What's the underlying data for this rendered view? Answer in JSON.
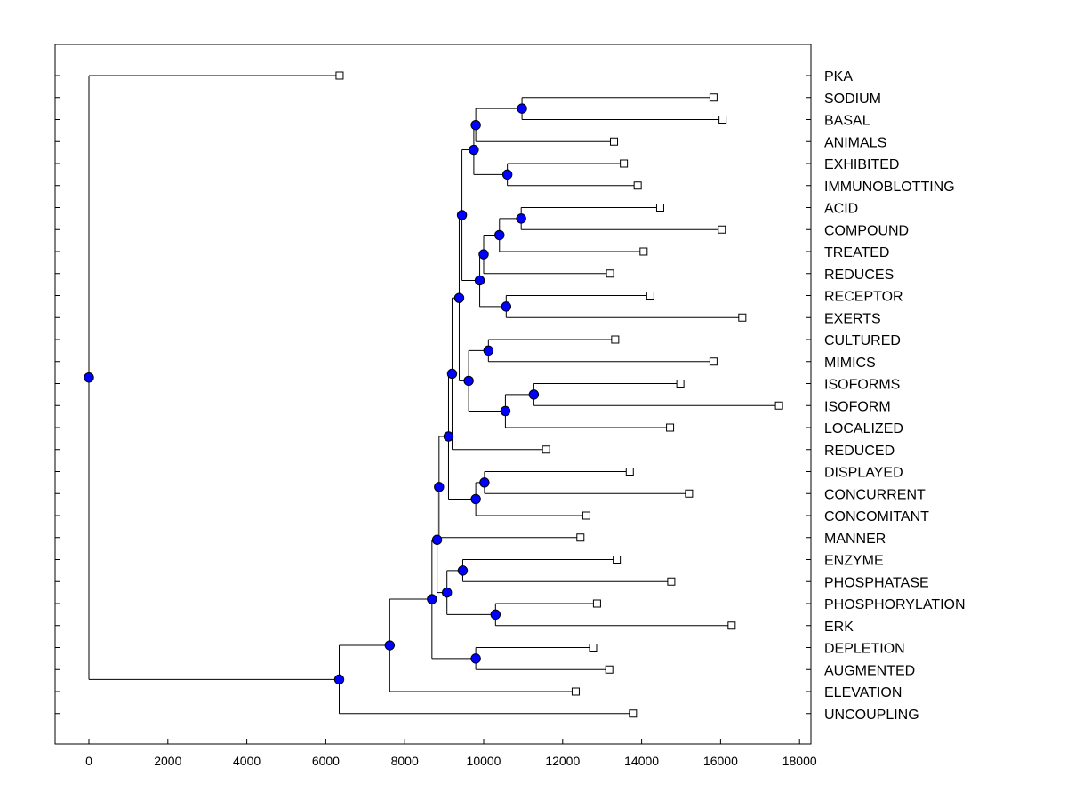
{
  "chart_data": {
    "type": "dendrogram",
    "title": "",
    "xlabel": "",
    "ylabel": "",
    "xlim": [
      -850,
      18400
    ],
    "x_ticks": [
      0,
      2000,
      4000,
      6000,
      8000,
      10000,
      12000,
      14000,
      16000,
      18000
    ],
    "x_tick_labels": [
      "0",
      "2000",
      "4000",
      "6000",
      "8000",
      "10000",
      "12000",
      "14000",
      "16000",
      "18000"
    ],
    "grid": false,
    "colors": {
      "node": "#0000ff",
      "line": "#000000",
      "leaf": "#ffffff"
    },
    "leaves": [
      {
        "label": "PKA",
        "x": 6350
      },
      {
        "label": "SODIUM",
        "x": 15820
      },
      {
        "label": "BASAL",
        "x": 16050
      },
      {
        "label": "ANIMALS",
        "x": 13300
      },
      {
        "label": "EXHIBITED",
        "x": 13550
      },
      {
        "label": "IMMUNOBLOTTING",
        "x": 13900
      },
      {
        "label": "ACID",
        "x": 14470
      },
      {
        "label": "COMPOUND",
        "x": 16030
      },
      {
        "label": "TREATED",
        "x": 14050
      },
      {
        "label": "REDUCES",
        "x": 13200
      },
      {
        "label": "RECEPTOR",
        "x": 14220
      },
      {
        "label": "EXERTS",
        "x": 16550
      },
      {
        "label": "CULTURED",
        "x": 13330
      },
      {
        "label": "MIMICS",
        "x": 15820
      },
      {
        "label": "ISOFORMS",
        "x": 14980
      },
      {
        "label": "ISOFORM",
        "x": 17480
      },
      {
        "label": "LOCALIZED",
        "x": 14720
      },
      {
        "label": "REDUCED",
        "x": 11580
      },
      {
        "label": "DISPLAYED",
        "x": 13700
      },
      {
        "label": "CONCURRENT",
        "x": 15200
      },
      {
        "label": "CONCOMITANT",
        "x": 12600
      },
      {
        "label": "MANNER",
        "x": 12450
      },
      {
        "label": "ENZYME",
        "x": 13370
      },
      {
        "label": "PHOSPHATASE",
        "x": 14750
      },
      {
        "label": "PHOSPHORYLATION",
        "x": 12870
      },
      {
        "label": "ERK",
        "x": 16280
      },
      {
        "label": "DEPLETION",
        "x": 12770
      },
      {
        "label": "AUGMENTED",
        "x": 13180
      },
      {
        "label": "ELEVATION",
        "x": 12330
      },
      {
        "label": "UNCOUPLING",
        "x": 13780
      }
    ],
    "merges": [
      {
        "id": "n1",
        "x": 10970,
        "children": [
          "SODIUM",
          "BASAL"
        ]
      },
      {
        "id": "n2",
        "x": 9800,
        "children": [
          "n1",
          "ANIMALS"
        ]
      },
      {
        "id": "n3",
        "x": 10600,
        "children": [
          "EXHIBITED",
          "IMMUNOBLOTTING"
        ]
      },
      {
        "id": "n4",
        "x": 9750,
        "children": [
          "n2",
          "n3"
        ]
      },
      {
        "id": "n5",
        "x": 10950,
        "children": [
          "ACID",
          "COMPOUND"
        ]
      },
      {
        "id": "n6",
        "x": 10400,
        "children": [
          "n5",
          "TREATED"
        ]
      },
      {
        "id": "n7",
        "x": 10000,
        "children": [
          "n6",
          "REDUCES"
        ]
      },
      {
        "id": "n8",
        "x": 10570,
        "children": [
          "RECEPTOR",
          "EXERTS"
        ]
      },
      {
        "id": "n9",
        "x": 9900,
        "children": [
          "n7",
          "n8"
        ]
      },
      {
        "id": "n10",
        "x": 9450,
        "children": [
          "n4",
          "n9"
        ]
      },
      {
        "id": "n11",
        "x": 10120,
        "children": [
          "CULTURED",
          "MIMICS"
        ]
      },
      {
        "id": "n12",
        "x": 11270,
        "children": [
          "ISOFORMS",
          "ISOFORM"
        ]
      },
      {
        "id": "n13",
        "x": 10550,
        "children": [
          "n12",
          "LOCALIZED"
        ]
      },
      {
        "id": "n14",
        "x": 9620,
        "children": [
          "n11",
          "n13"
        ]
      },
      {
        "id": "n15",
        "x": 9380,
        "children": [
          "n10",
          "n14"
        ]
      },
      {
        "id": "n16",
        "x": 9200,
        "children": [
          "n15",
          "REDUCED"
        ]
      },
      {
        "id": "n17",
        "x": 10020,
        "children": [
          "DISPLAYED",
          "CONCURRENT"
        ]
      },
      {
        "id": "n18",
        "x": 9800,
        "children": [
          "n17",
          "CONCOMITANT"
        ]
      },
      {
        "id": "n19",
        "x": 9110,
        "children": [
          "n16",
          "n18"
        ]
      },
      {
        "id": "n20",
        "x": 8870,
        "children": [
          "n19",
          "MANNER"
        ]
      },
      {
        "id": "n21",
        "x": 9470,
        "children": [
          "ENZYME",
          "PHOSPHATASE"
        ]
      },
      {
        "id": "n22",
        "x": 10300,
        "children": [
          "PHOSPHORYLATION",
          "ERK"
        ]
      },
      {
        "id": "n23",
        "x": 9070,
        "children": [
          "n21",
          "n22"
        ]
      },
      {
        "id": "n24",
        "x": 8820,
        "children": [
          "n20",
          "n23"
        ]
      },
      {
        "id": "n25",
        "x": 9800,
        "children": [
          "DEPLETION",
          "AUGMENTED"
        ]
      },
      {
        "id": "n26",
        "x": 8690,
        "children": [
          "n24",
          "n25"
        ]
      },
      {
        "id": "n27",
        "x": 7620,
        "children": [
          "n26",
          "ELEVATION"
        ]
      },
      {
        "id": "n28",
        "x": 6340,
        "children": [
          "n27",
          "UNCOUPLING"
        ]
      },
      {
        "id": "n29",
        "x": 0,
        "children": [
          "PKA",
          "n28"
        ]
      }
    ]
  }
}
